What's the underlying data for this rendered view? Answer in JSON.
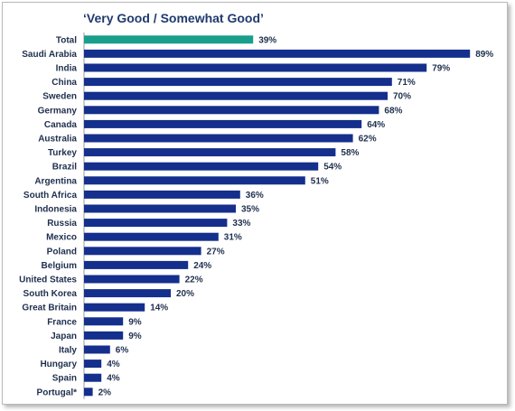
{
  "chart_data": {
    "type": "bar",
    "orientation": "horizontal",
    "title": "‘Very Good / Somewhat Good’",
    "value_suffix": "%",
    "categories": [
      "Total",
      "Saudi Arabia",
      "India",
      "China",
      "Sweden",
      "Germany",
      "Canada",
      "Australia",
      "Turkey",
      "Brazil",
      "Argentina",
      "South Africa",
      "Indonesia",
      "Russia",
      "Mexico",
      "Poland",
      "Belgium",
      "United States",
      "South Korea",
      "Great Britain",
      "France",
      "Japan",
      "Italy",
      "Hungary",
      "Spain",
      "Portugal*"
    ],
    "values": [
      39,
      89,
      79,
      71,
      70,
      68,
      64,
      62,
      58,
      54,
      51,
      36,
      35,
      33,
      31,
      27,
      24,
      22,
      20,
      14,
      9,
      9,
      6,
      4,
      4,
      2
    ],
    "colors": {
      "highlight": "#1a9e8c",
      "default": "#142f8c"
    },
    "highlight_categories": [
      "Total"
    ],
    "grid": false,
    "legend": "none"
  }
}
